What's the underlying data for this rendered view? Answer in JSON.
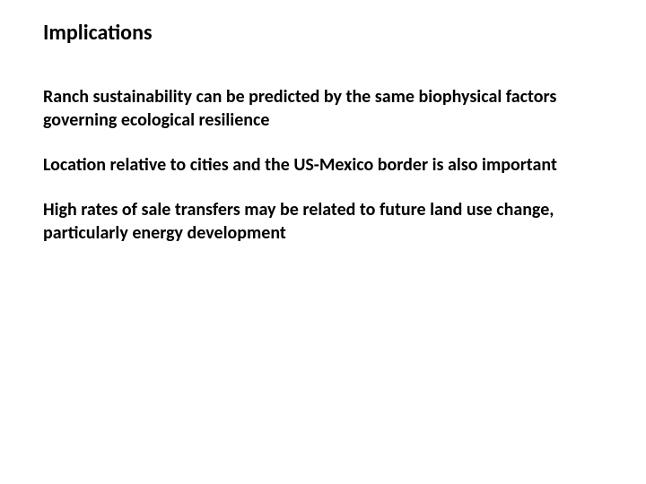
{
  "slide": {
    "title": "Implications",
    "bullets": [
      "Ranch sustainability can be predicted by the same biophysical factors governing ecological resilience",
      "Location relative to cities and the US-Mexico border is also important",
      "High rates of sale transfers may be related to future land use change, particularly energy development"
    ]
  },
  "style": {
    "background_color": "#ffffff",
    "text_color": "#000000",
    "title_fontsize": 24,
    "body_fontsize": 20,
    "font_family": "Calibri, Arial, sans-serif"
  }
}
